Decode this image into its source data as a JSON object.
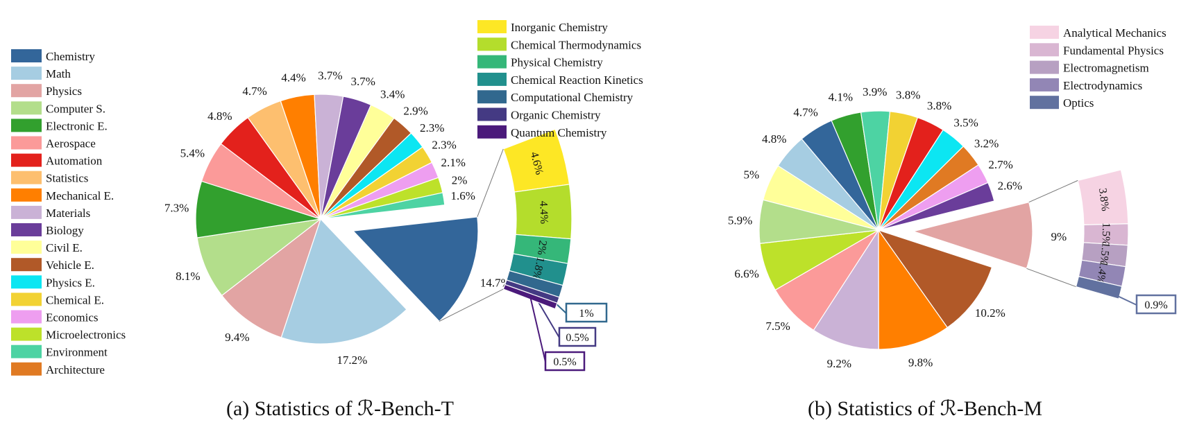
{
  "chart_data": [
    {
      "type": "pie",
      "caption": "(a) Statistics of ℛ-Bench-T",
      "slices": [
        {
          "name": "Chemistry",
          "value": 14.7,
          "label": "14.7%",
          "color": "#33669a"
        },
        {
          "name": "Math",
          "value": 17.2,
          "label": "17.2%",
          "color": "#a6cde2"
        },
        {
          "name": "Physics",
          "value": 9.4,
          "label": "9.4%",
          "color": "#e2a4a3"
        },
        {
          "name": "Computer S.",
          "value": 8.1,
          "label": "8.1%",
          "color": "#b3de8b"
        },
        {
          "name": "Electronic E.",
          "value": 7.3,
          "label": "7.3%",
          "color": "#32a02e"
        },
        {
          "name": "Aerospace",
          "value": 5.4,
          "label": "5.4%",
          "color": "#fb9a99"
        },
        {
          "name": "Automation",
          "value": 4.8,
          "label": "4.8%",
          "color": "#e3211c"
        },
        {
          "name": "Statistics",
          "value": 4.7,
          "label": "4.7%",
          "color": "#fdbf6f"
        },
        {
          "name": "Mechanical E.",
          "value": 4.4,
          "label": "4.4%",
          "color": "#ff7f00"
        },
        {
          "name": "Materials",
          "value": 3.7,
          "label": "3.7%",
          "color": "#cab2d6"
        },
        {
          "name": "Biology",
          "value": 3.7,
          "label": "3.7%",
          "color": "#6a3d9a"
        },
        {
          "name": "Civil E.",
          "value": 3.4,
          "label": "3.4%",
          "color": "#ffff99"
        },
        {
          "name": "Vehicle E.",
          "value": 2.9,
          "label": "2.9%",
          "color": "#b15928"
        },
        {
          "name": "Physics E.",
          "value": 2.3,
          "label": "2.3%",
          "color": "#0ce6f2"
        },
        {
          "name": "Chemical E.",
          "value": 2.3,
          "label": "2.3%",
          "color": "#f2d233"
        },
        {
          "name": "Economics",
          "value": 2.1,
          "label": "2.1%",
          "color": "#ee9ef0"
        },
        {
          "name": "Microelectronics",
          "value": 2.0,
          "label": "2%",
          "color": "#bde12a"
        },
        {
          "name": "Environment",
          "value": 1.6,
          "label": "1.6%",
          "color": "#4dd3a3"
        },
        {
          "name": "Architecture",
          "value": 0,
          "label": "",
          "color": "#e07a23"
        }
      ],
      "exploded": "Chemistry",
      "breakdown": [
        {
          "name": "Inorganic Chemistry",
          "value": 4.6,
          "label": "4.6%",
          "color": "#fde725"
        },
        {
          "name": "Chemical Thermodynamics",
          "value": 4.4,
          "label": "4.4%",
          "color": "#b4dd2c"
        },
        {
          "name": "Physical Chemistry",
          "value": 2.0,
          "label": "2%",
          "color": "#35b779"
        },
        {
          "name": "Chemical Reaction Kinetics",
          "value": 1.8,
          "label": "1.8%",
          "color": "#21908d"
        },
        {
          "name": "Computational Chemistry",
          "value": 1.0,
          "label": "1%",
          "color": "#31688e"
        },
        {
          "name": "Organic Chemistry",
          "value": 0.5,
          "label": "0.5%",
          "color": "#443a83"
        },
        {
          "name": "Quantum Chemistry",
          "value": 0.5,
          "label": "0.5%",
          "color": "#4b1a7b"
        }
      ]
    },
    {
      "type": "pie",
      "caption": "(b) Statistics of ℛ-Bench-M",
      "slices": [
        {
          "name": "Physics",
          "value": 9.0,
          "label": "9%",
          "color": "#e2a4a3"
        },
        {
          "name": "Vehicle E.",
          "value": 10.2,
          "label": "10.2%",
          "color": "#b15928"
        },
        {
          "name": "Mechanical E.",
          "value": 9.8,
          "label": "9.8%",
          "color": "#ff7f00"
        },
        {
          "name": "Materials",
          "value": 9.2,
          "label": "9.2%",
          "color": "#cab2d6"
        },
        {
          "name": "Aerospace",
          "value": 7.5,
          "label": "7.5%",
          "color": "#fb9a99"
        },
        {
          "name": "Microelectronics",
          "value": 6.6,
          "label": "6.6%",
          "color": "#bde12a"
        },
        {
          "name": "Computer S.",
          "value": 5.9,
          "label": "5.9%",
          "color": "#b3de8b"
        },
        {
          "name": "Civil E.",
          "value": 5.0,
          "label": "5%",
          "color": "#ffff99"
        },
        {
          "name": "Math",
          "value": 4.8,
          "label": "4.8%",
          "color": "#a6cde2"
        },
        {
          "name": "Chemistry",
          "value": 4.7,
          "label": "4.7%",
          "color": "#33669a"
        },
        {
          "name": "Electronic E.",
          "value": 4.1,
          "label": "4.1%",
          "color": "#32a02e"
        },
        {
          "name": "Environment",
          "value": 3.9,
          "label": "3.9%",
          "color": "#4dd3a3"
        },
        {
          "name": "Chemical E.",
          "value": 3.8,
          "label": "3.8%",
          "color": "#f2d233"
        },
        {
          "name": "Automation",
          "value": 3.8,
          "label": "3.8%",
          "color": "#e3211c"
        },
        {
          "name": "Physics E.",
          "value": 3.5,
          "label": "3.5%",
          "color": "#0ce6f2"
        },
        {
          "name": "Architecture",
          "value": 3.2,
          "label": "3.2%",
          "color": "#e07a23"
        },
        {
          "name": "Economics",
          "value": 2.7,
          "label": "2.7%",
          "color": "#ee9ef0"
        },
        {
          "name": "Biology",
          "value": 2.6,
          "label": "2.6%",
          "color": "#6a3d9a"
        }
      ],
      "exploded": "Physics",
      "breakdown": [
        {
          "name": "Analytical Mechanics",
          "value": 3.8,
          "label": "3.8%",
          "color": "#f6d3e3"
        },
        {
          "name": "Fundamental Physics",
          "value": 1.5,
          "label": "1.5%",
          "color": "#d9b6d2"
        },
        {
          "name": "Electromagnetism",
          "value": 1.5,
          "label": "1.5%",
          "color": "#b7a0c2"
        },
        {
          "name": "Electrodynamics",
          "value": 1.4,
          "label": "1.4%",
          "color": "#9286b5"
        },
        {
          "name": "Optics",
          "value": 0.9,
          "label": "0.9%",
          "color": "#61719f"
        }
      ]
    }
  ]
}
